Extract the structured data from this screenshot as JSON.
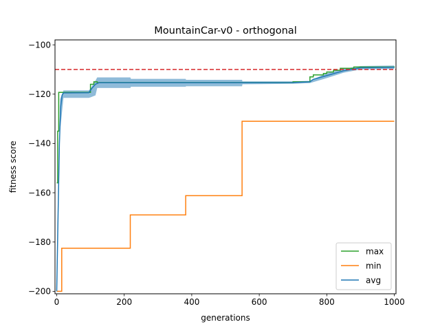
{
  "chart_data": {
    "type": "line",
    "title": "MountainCar-v0 - orthogonal",
    "xlabel": "generations",
    "ylabel": "fitness score",
    "xlim": [
      -5,
      1005
    ],
    "ylim": [
      -201,
      -98
    ],
    "xticks": [
      0,
      200,
      400,
      600,
      800,
      1000
    ],
    "yticks": [
      -200,
      -180,
      -160,
      -140,
      -120,
      -100
    ],
    "xtick_labels": [
      "0",
      "200",
      "400",
      "600",
      "800",
      "1000"
    ],
    "ytick_labels": [
      "−200",
      "−180",
      "−160",
      "−140",
      "−120",
      "−100"
    ],
    "grid": false,
    "legend_position": "lower-right",
    "threshold": {
      "y": -110,
      "color": "#d62728",
      "style": "dashed"
    },
    "series": [
      {
        "name": "max",
        "color": "#2ca02c",
        "step": true,
        "x": [
          0,
          3,
          6,
          100,
          110,
          120,
          700,
          750,
          760,
          790,
          800,
          820,
          840,
          880,
          1000
        ],
        "y": [
          -156,
          -135,
          -119.3,
          -116,
          -115,
          -115.3,
          -115,
          -113,
          -112.2,
          -111.6,
          -111,
          -110.3,
          -109.5,
          -109,
          -108.8
        ]
      },
      {
        "name": "min",
        "color": "#ff7f0e",
        "step": true,
        "x": [
          0,
          15,
          218,
          382,
          549,
          1000
        ],
        "y": [
          -200,
          -182.5,
          -169,
          -161.2,
          -131,
          -131
        ]
      },
      {
        "name": "avg",
        "color": "#1f77b4",
        "step": false,
        "x": [
          0,
          4,
          8,
          12,
          16,
          20,
          30,
          95,
          105,
          115,
          125,
          200,
          500,
          700,
          750,
          760,
          800,
          850,
          900,
          1000
        ],
        "y": [
          -200,
          -170,
          -140,
          -125,
          -120.5,
          -119.5,
          -119.5,
          -119.4,
          -117.5,
          -116,
          -115.4,
          -115.4,
          -115.4,
          -115.3,
          -115,
          -114,
          -112.5,
          -110.5,
          -109.3,
          -109.1
        ],
        "band": {
          "x": [
            0,
            10,
            20,
            95,
            100,
            115,
            120,
            218,
            220,
            382,
            383,
            549,
            550,
            700,
            750,
            800,
            850,
            900,
            1000
          ],
          "lower": [
            -200,
            -135,
            -121.5,
            -121.5,
            -121.3,
            -120.5,
            -117.5,
            -117.5,
            -117,
            -117,
            -116.8,
            -116.8,
            -116,
            -115.8,
            -115.5,
            -113.5,
            -111.3,
            -110,
            -109.8
          ],
          "upper": [
            -200,
            -122,
            -118.5,
            -118.5,
            -117.8,
            -114.5,
            -113.2,
            -113.2,
            -113.8,
            -113.8,
            -114.2,
            -114.2,
            -114.8,
            -114.8,
            -114.6,
            -111.5,
            -109.7,
            -108.6,
            -108.4
          ]
        }
      }
    ]
  }
}
